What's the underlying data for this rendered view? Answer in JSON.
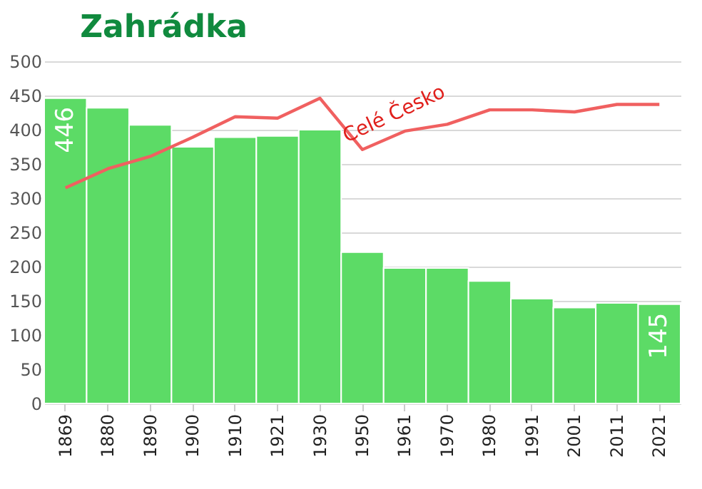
{
  "chart_data": {
    "type": "bar",
    "title": "Zahrádka",
    "categories": [
      "1869",
      "1880",
      "1890",
      "1900",
      "1910",
      "1921",
      "1930",
      "1950",
      "1961",
      "1970",
      "1980",
      "1991",
      "2001",
      "2011",
      "2021"
    ],
    "series": [
      {
        "color": "#5cdb66",
        "values": [
          446,
          432,
          407,
          375,
          389,
          391,
          400,
          221,
          198,
          198,
          179,
          153,
          140,
          147,
          145
        ],
        "value_labels": [
          "446",
          null,
          null,
          null,
          null,
          null,
          null,
          null,
          null,
          null,
          null,
          null,
          null,
          null,
          "145"
        ]
      },
      {
        "type": "line",
        "name": "Celé Česko",
        "color": "#f06060",
        "values": [
          315,
          343,
          361,
          389,
          419,
          417,
          446,
          371,
          398,
          408,
          429,
          429,
          426,
          437,
          437
        ]
      }
    ],
    "ylim": [
      0,
      500
    ],
    "yticks": [
      0,
      50,
      100,
      150,
      200,
      250,
      300,
      350,
      400,
      450,
      500
    ],
    "grid": "y"
  }
}
